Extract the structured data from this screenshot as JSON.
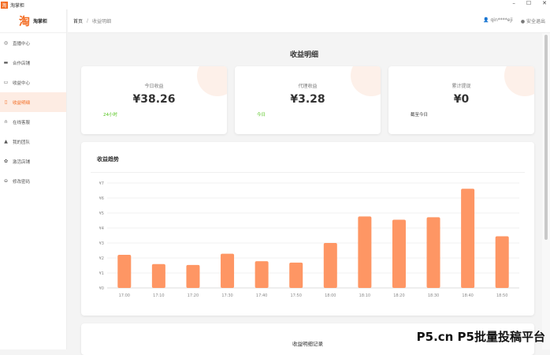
{
  "app": {
    "title": "淘掌柜",
    "window_controls": [
      "–",
      "☐",
      "✕"
    ]
  },
  "sidebar": {
    "brand": "淘掌柜",
    "brand_logo": "淘",
    "items": [
      {
        "label": "直播中心",
        "icon": "target-icon"
      },
      {
        "label": "合作店铺",
        "icon": "monitor-icon"
      },
      {
        "label": "收益中心",
        "icon": "folder-icon"
      },
      {
        "label": "收益明细",
        "icon": "document-icon",
        "active": true
      },
      {
        "label": "在线客服",
        "icon": "headset-icon"
      },
      {
        "label": "我的团队",
        "icon": "user-icon"
      },
      {
        "label": "激活店铺",
        "icon": "gear-icon"
      },
      {
        "label": "修改密码",
        "icon": "lock-icon"
      }
    ]
  },
  "header": {
    "breadcrumb": [
      "首页",
      "收益明细"
    ],
    "separator": "/",
    "user": "qin****eji",
    "logout": "安全退出"
  },
  "main": {
    "title": "收益明细",
    "stats": [
      {
        "label": "今日收益",
        "value": "¥38.26",
        "sub": "24小时",
        "sub_color": "#52c41a"
      },
      {
        "label": "代理收益",
        "value": "¥3.28",
        "sub": "今日",
        "sub_color": "#52c41a"
      },
      {
        "label": "累计提现",
        "value": "¥0",
        "sub": "截至今日",
        "sub_color": "#333333"
      }
    ],
    "chart_title": "收益趋势",
    "records_title": "收益明细记录"
  },
  "chart_data": {
    "type": "bar",
    "categories": [
      "17:00",
      "17:10",
      "17:20",
      "17:30",
      "17:40",
      "17:50",
      "18:00",
      "18:10",
      "18:20",
      "18:30",
      "18:40",
      "18:50"
    ],
    "values": [
      2.21,
      1.59,
      1.53,
      2.28,
      1.78,
      1.69,
      3.0,
      4.77,
      4.55,
      4.72,
      6.62,
      3.45
    ],
    "ylim": [
      0,
      7
    ],
    "yticks": [
      "¥0",
      "¥1",
      "¥2",
      "¥3",
      "¥4",
      "¥5",
      "¥6",
      "¥7"
    ],
    "grid": true,
    "bar_color": "#fe9664"
  },
  "watermark": "P5.cn P5批量投稿平台"
}
